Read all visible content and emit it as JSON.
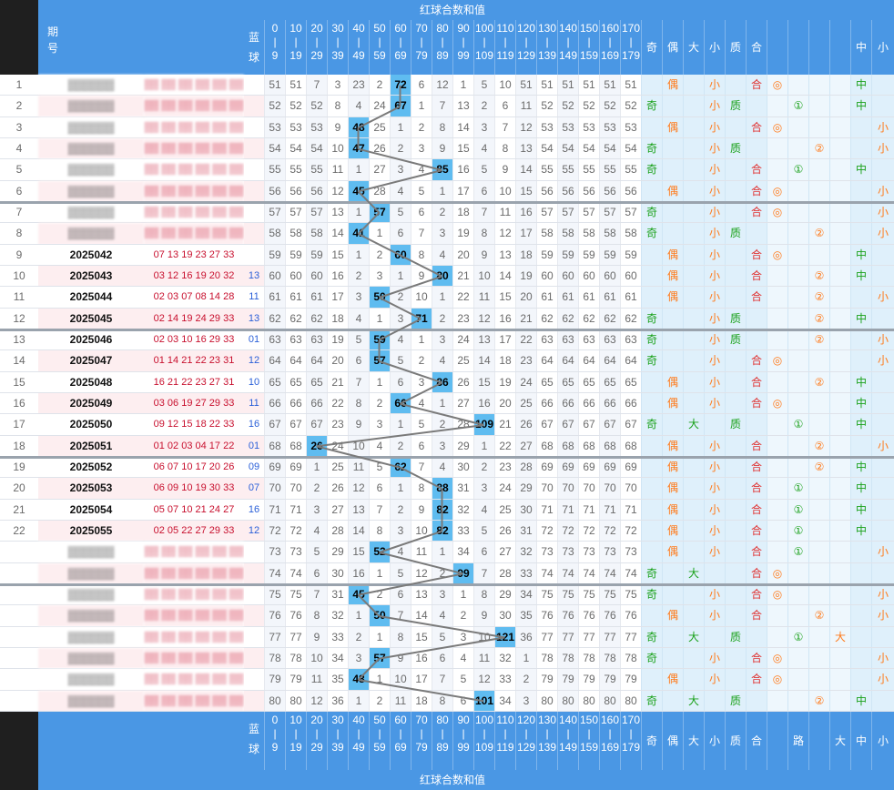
{
  "header": {
    "title_sum": "红球合数和值",
    "period_label": [
      "期",
      "号"
    ],
    "blue_label": [
      "蓝",
      "球"
    ],
    "ranges": [
      [
        "0",
        "10",
        "20",
        "30",
        "40",
        "50",
        "60",
        "70",
        "80",
        "90",
        "100",
        "110",
        "120",
        "130",
        "140",
        "150",
        "160",
        "170"
      ],
      [
        "9",
        "19",
        "29",
        "39",
        "49",
        "59",
        "69",
        "79",
        "89",
        "99",
        "109",
        "119",
        "129",
        "139",
        "149",
        "159",
        "169",
        "179"
      ]
    ],
    "stats_cols": [
      "奇",
      "偶",
      "大",
      "小",
      "质",
      "合",
      "",
      "",
      "",
      "",
      "中",
      "小"
    ],
    "bottom_stats_cols": [
      "奇",
      "偶",
      "大",
      "小",
      "质",
      "合",
      "",
      "路",
      "",
      "大",
      "中",
      "小"
    ]
  },
  "rows": [
    {
      "n": "1",
      "period": "",
      "reds": "",
      "blue": "",
      "vals": [
        "51",
        "51",
        "7",
        "3",
        "23",
        "2",
        "72",
        "6",
        "12",
        "1",
        "5",
        "10",
        "51",
        "51",
        "51",
        "51",
        "51",
        "51"
      ],
      "hit": 6,
      "marks": [
        "",
        "偶",
        "",
        "小",
        "",
        "合",
        "◎",
        "",
        "",
        "",
        "中",
        ""
      ]
    },
    {
      "n": "2",
      "period": "",
      "reds": "",
      "blue": "",
      "vals": [
        "52",
        "52",
        "52",
        "8",
        "4",
        "24",
        "67",
        "1",
        "7",
        "13",
        "2",
        "6",
        "11",
        "52",
        "52",
        "52",
        "52",
        "52"
      ],
      "hit": 6,
      "marks": [
        "奇",
        "",
        "",
        "小",
        "质",
        "",
        "",
        "①",
        "",
        "",
        "中",
        ""
      ]
    },
    {
      "n": "3",
      "period": "",
      "reds": "",
      "blue": "",
      "vals": [
        "53",
        "53",
        "53",
        "9",
        "48",
        "25",
        "1",
        "2",
        "8",
        "14",
        "3",
        "7",
        "12",
        "53",
        "53",
        "53",
        "53",
        "53"
      ],
      "hit": 4,
      "marks": [
        "",
        "偶",
        "",
        "小",
        "",
        "合",
        "◎",
        "",
        "",
        "",
        "",
        "小"
      ]
    },
    {
      "n": "4",
      "period": "",
      "reds": "",
      "blue": "",
      "vals": [
        "54",
        "54",
        "54",
        "10",
        "47",
        "26",
        "2",
        "3",
        "9",
        "15",
        "4",
        "8",
        "13",
        "54",
        "54",
        "54",
        "54",
        "54"
      ],
      "hit": 4,
      "marks": [
        "奇",
        "",
        "",
        "小",
        "质",
        "",
        "",
        "",
        "②",
        "",
        "",
        "小"
      ]
    },
    {
      "n": "5",
      "period": "",
      "reds": "",
      "blue": "",
      "vals": [
        "55",
        "55",
        "55",
        "11",
        "1",
        "27",
        "3",
        "4",
        "85",
        "16",
        "5",
        "9",
        "14",
        "55",
        "55",
        "55",
        "55",
        "55"
      ],
      "hit": 8,
      "marks": [
        "奇",
        "",
        "",
        "小",
        "",
        "合",
        "",
        "①",
        "",
        "",
        "中",
        ""
      ]
    },
    {
      "n": "6",
      "period": "",
      "reds": "",
      "blue": "",
      "vals": [
        "56",
        "56",
        "56",
        "12",
        "45",
        "28",
        "4",
        "5",
        "1",
        "17",
        "6",
        "10",
        "15",
        "56",
        "56",
        "56",
        "56",
        "56"
      ],
      "hit": 4,
      "marks": [
        "",
        "偶",
        "",
        "小",
        "",
        "合",
        "◎",
        "",
        "",
        "",
        "",
        "小"
      ]
    },
    {
      "n": "7",
      "period": "",
      "reds": "",
      "blue": "",
      "vals": [
        "57",
        "57",
        "57",
        "13",
        "1",
        "57",
        "5",
        "6",
        "2",
        "18",
        "7",
        "11",
        "16",
        "57",
        "57",
        "57",
        "57",
        "57"
      ],
      "hit": 5,
      "marks": [
        "奇",
        "",
        "",
        "小",
        "",
        "合",
        "◎",
        "",
        "",
        "",
        "",
        "小"
      ]
    },
    {
      "n": "8",
      "period": "",
      "reds": "",
      "blue": "",
      "vals": [
        "58",
        "58",
        "58",
        "14",
        "41",
        "1",
        "6",
        "7",
        "3",
        "19",
        "8",
        "12",
        "17",
        "58",
        "58",
        "58",
        "58",
        "58"
      ],
      "hit": 4,
      "marks": [
        "奇",
        "",
        "",
        "小",
        "质",
        "",
        "",
        "",
        "②",
        "",
        "",
        "小"
      ]
    },
    {
      "n": "9",
      "period": "2025042",
      "reds": "07 13 19 23 27 33",
      "blue": "",
      "vals": [
        "59",
        "59",
        "59",
        "15",
        "1",
        "2",
        "60",
        "8",
        "4",
        "20",
        "9",
        "13",
        "18",
        "59",
        "59",
        "59",
        "59",
        "59"
      ],
      "hit": 6,
      "marks": [
        "",
        "偶",
        "",
        "小",
        "",
        "合",
        "◎",
        "",
        "",
        "",
        "中",
        ""
      ]
    },
    {
      "n": "10",
      "period": "2025043",
      "reds": "03 12 16 19 20 32",
      "blue": "13",
      "vals": [
        "60",
        "60",
        "60",
        "16",
        "2",
        "3",
        "1",
        "9",
        "80",
        "21",
        "10",
        "14",
        "19",
        "60",
        "60",
        "60",
        "60",
        "60"
      ],
      "hit": 8,
      "marks": [
        "",
        "偶",
        "",
        "小",
        "",
        "合",
        "",
        "",
        "②",
        "",
        "中",
        ""
      ]
    },
    {
      "n": "11",
      "period": "2025044",
      "reds": "02 03 07 08 14 28",
      "blue": "11",
      "vals": [
        "61",
        "61",
        "61",
        "17",
        "3",
        "50",
        "2",
        "10",
        "1",
        "22",
        "11",
        "15",
        "20",
        "61",
        "61",
        "61",
        "61",
        "61"
      ],
      "hit": 5,
      "marks": [
        "",
        "偶",
        "",
        "小",
        "",
        "合",
        "",
        "",
        "②",
        "",
        "",
        "小"
      ]
    },
    {
      "n": "12",
      "period": "2025045",
      "reds": "02 14 19 24 29 33",
      "blue": "13",
      "vals": [
        "62",
        "62",
        "62",
        "18",
        "4",
        "1",
        "3",
        "71",
        "2",
        "23",
        "12",
        "16",
        "21",
        "62",
        "62",
        "62",
        "62",
        "62"
      ],
      "hit": 7,
      "marks": [
        "奇",
        "",
        "",
        "小",
        "质",
        "",
        "",
        "",
        "②",
        "",
        "中",
        ""
      ]
    },
    {
      "n": "13",
      "period": "2025046",
      "reds": "02 03 10 16 29 33",
      "blue": "01",
      "vals": [
        "63",
        "63",
        "63",
        "19",
        "5",
        "59",
        "4",
        "1",
        "3",
        "24",
        "13",
        "17",
        "22",
        "63",
        "63",
        "63",
        "63",
        "63"
      ],
      "hit": 5,
      "marks": [
        "奇",
        "",
        "",
        "小",
        "质",
        "",
        "",
        "",
        "②",
        "",
        "",
        "小"
      ]
    },
    {
      "n": "14",
      "period": "2025047",
      "reds": "01 14 21 22 23 31",
      "blue": "12",
      "vals": [
        "64",
        "64",
        "64",
        "20",
        "6",
        "57",
        "5",
        "2",
        "4",
        "25",
        "14",
        "18",
        "23",
        "64",
        "64",
        "64",
        "64",
        "64"
      ],
      "hit": 5,
      "marks": [
        "奇",
        "",
        "",
        "小",
        "",
        "合",
        "◎",
        "",
        "",
        "",
        "",
        "小"
      ]
    },
    {
      "n": "15",
      "period": "2025048",
      "reds": "16 21 22 23 27 31",
      "blue": "10",
      "vals": [
        "65",
        "65",
        "65",
        "21",
        "7",
        "1",
        "6",
        "3",
        "86",
        "26",
        "15",
        "19",
        "24",
        "65",
        "65",
        "65",
        "65",
        "65"
      ],
      "hit": 8,
      "marks": [
        "",
        "偶",
        "",
        "小",
        "",
        "合",
        "",
        "",
        "②",
        "",
        "中",
        ""
      ]
    },
    {
      "n": "16",
      "period": "2025049",
      "reds": "03 06 19 27 29 33",
      "blue": "11",
      "vals": [
        "66",
        "66",
        "66",
        "22",
        "8",
        "2",
        "66",
        "4",
        "1",
        "27",
        "16",
        "20",
        "25",
        "66",
        "66",
        "66",
        "66",
        "66"
      ],
      "hit": 6,
      "marks": [
        "",
        "偶",
        "",
        "小",
        "",
        "合",
        "◎",
        "",
        "",
        "",
        "中",
        ""
      ]
    },
    {
      "n": "17",
      "period": "2025050",
      "reds": "09 12 15 18 22 33",
      "blue": "16",
      "vals": [
        "67",
        "67",
        "67",
        "23",
        "9",
        "3",
        "1",
        "5",
        "2",
        "28",
        "109",
        "21",
        "26",
        "67",
        "67",
        "67",
        "67",
        "67"
      ],
      "hit": 10,
      "marks": [
        "奇",
        "",
        "大",
        "",
        "质",
        "",
        "",
        "①",
        "",
        "",
        "中",
        ""
      ]
    },
    {
      "n": "18",
      "period": "2025051",
      "reds": "01 02 03 04 17 22",
      "blue": "01",
      "vals": [
        "68",
        "68",
        "26",
        "24",
        "10",
        "4",
        "2",
        "6",
        "3",
        "29",
        "1",
        "22",
        "27",
        "68",
        "68",
        "68",
        "68",
        "68"
      ],
      "hit": 2,
      "marks": [
        "",
        "偶",
        "",
        "小",
        "",
        "合",
        "",
        "",
        "②",
        "",
        "",
        "小"
      ]
    },
    {
      "n": "19",
      "period": "2025052",
      "reds": "06 07 10 17 20 26",
      "blue": "09",
      "vals": [
        "69",
        "69",
        "1",
        "25",
        "11",
        "5",
        "62",
        "7",
        "4",
        "30",
        "2",
        "23",
        "28",
        "69",
        "69",
        "69",
        "69",
        "69"
      ],
      "hit": 6,
      "marks": [
        "",
        "偶",
        "",
        "小",
        "",
        "合",
        "",
        "",
        "②",
        "",
        "中",
        ""
      ]
    },
    {
      "n": "20",
      "period": "2025053",
      "reds": "06 09 10 19 30 33",
      "blue": "07",
      "vals": [
        "70",
        "70",
        "2",
        "26",
        "12",
        "6",
        "1",
        "8",
        "88",
        "31",
        "3",
        "24",
        "29",
        "70",
        "70",
        "70",
        "70",
        "70"
      ],
      "hit": 8,
      "marks": [
        "",
        "偶",
        "",
        "小",
        "",
        "合",
        "",
        "①",
        "",
        "",
        "中",
        ""
      ]
    },
    {
      "n": "21",
      "period": "2025054",
      "reds": "05 07 10 21 24 27",
      "blue": "16",
      "vals": [
        "71",
        "71",
        "3",
        "27",
        "13",
        "7",
        "2",
        "9",
        "82",
        "32",
        "4",
        "25",
        "30",
        "71",
        "71",
        "71",
        "71",
        "71"
      ],
      "hit": 8,
      "marks": [
        "",
        "偶",
        "",
        "小",
        "",
        "合",
        "",
        "①",
        "",
        "",
        "中",
        ""
      ]
    },
    {
      "n": "22",
      "period": "2025055",
      "reds": "02 05 22 27 29 33",
      "blue": "12",
      "vals": [
        "72",
        "72",
        "4",
        "28",
        "14",
        "8",
        "3",
        "10",
        "82",
        "33",
        "5",
        "26",
        "31",
        "72",
        "72",
        "72",
        "72",
        "72"
      ],
      "hit": 8,
      "marks": [
        "",
        "偶",
        "",
        "小",
        "",
        "合",
        "",
        "①",
        "",
        "",
        "中",
        ""
      ]
    },
    {
      "n": "",
      "period": "",
      "reds": "",
      "blue": "",
      "vals": [
        "73",
        "73",
        "5",
        "29",
        "15",
        "52",
        "4",
        "11",
        "1",
        "34",
        "6",
        "27",
        "32",
        "73",
        "73",
        "73",
        "73",
        "73"
      ],
      "hit": 5,
      "marks": [
        "",
        "偶",
        "",
        "小",
        "",
        "合",
        "",
        "①",
        "",
        "",
        "",
        "小"
      ]
    },
    {
      "n": "",
      "period": "",
      "reds": "",
      "blue": "",
      "vals": [
        "74",
        "74",
        "6",
        "30",
        "16",
        "1",
        "5",
        "12",
        "2",
        "99",
        "7",
        "28",
        "33",
        "74",
        "74",
        "74",
        "74",
        "74"
      ],
      "hit": 9,
      "marks": [
        "奇",
        "",
        "大",
        "",
        "",
        "合",
        "◎",
        "",
        "",
        "",
        "",
        ""
      ]
    },
    {
      "n": "",
      "period": "",
      "reds": "",
      "blue": "",
      "vals": [
        "75",
        "75",
        "7",
        "31",
        "45",
        "2",
        "6",
        "13",
        "3",
        "1",
        "8",
        "29",
        "34",
        "75",
        "75",
        "75",
        "75",
        "75"
      ],
      "hit": 4,
      "marks": [
        "奇",
        "",
        "",
        "小",
        "",
        "合",
        "◎",
        "",
        "",
        "",
        "",
        "小"
      ]
    },
    {
      "n": "",
      "period": "",
      "reds": "",
      "blue": "",
      "vals": [
        "76",
        "76",
        "8",
        "32",
        "1",
        "50",
        "7",
        "14",
        "4",
        "2",
        "9",
        "30",
        "35",
        "76",
        "76",
        "76",
        "76",
        "76"
      ],
      "hit": 5,
      "marks": [
        "",
        "偶",
        "",
        "小",
        "",
        "合",
        "",
        "",
        "②",
        "",
        "",
        "小"
      ]
    },
    {
      "n": "",
      "period": "",
      "reds": "",
      "blue": "",
      "vals": [
        "77",
        "77",
        "9",
        "33",
        "2",
        "1",
        "8",
        "15",
        "5",
        "3",
        "10",
        "121",
        "36",
        "77",
        "77",
        "77",
        "77",
        "77"
      ],
      "hit": 11,
      "marks": [
        "奇",
        "",
        "大",
        "",
        "质",
        "",
        "",
        "①",
        "",
        "大",
        "",
        ""
      ]
    },
    {
      "n": "",
      "period": "",
      "reds": "",
      "blue": "",
      "vals": [
        "78",
        "78",
        "10",
        "34",
        "3",
        "57",
        "9",
        "16",
        "6",
        "4",
        "11",
        "32",
        "1",
        "78",
        "78",
        "78",
        "78",
        "78"
      ],
      "hit": 5,
      "marks": [
        "奇",
        "",
        "",
        "小",
        "",
        "合",
        "◎",
        "",
        "",
        "",
        "",
        "小"
      ]
    },
    {
      "n": "",
      "period": "",
      "reds": "",
      "blue": "",
      "vals": [
        "79",
        "79",
        "11",
        "35",
        "48",
        "1",
        "10",
        "17",
        "7",
        "5",
        "12",
        "33",
        "2",
        "79",
        "79",
        "79",
        "79",
        "79"
      ],
      "hit": 4,
      "marks": [
        "",
        "偶",
        "",
        "小",
        "",
        "合",
        "◎",
        "",
        "",
        "",
        "",
        "小"
      ]
    },
    {
      "n": "",
      "period": "",
      "reds": "",
      "blue": "",
      "vals": [
        "80",
        "80",
        "12",
        "36",
        "1",
        "2",
        "11",
        "18",
        "8",
        "6",
        "101",
        "34",
        "3",
        "80",
        "80",
        "80",
        "80",
        "80"
      ],
      "hit": 10,
      "marks": [
        "奇",
        "",
        "大",
        "",
        "质",
        "",
        "",
        "",
        "②",
        "",
        "中",
        ""
      ]
    }
  ]
}
